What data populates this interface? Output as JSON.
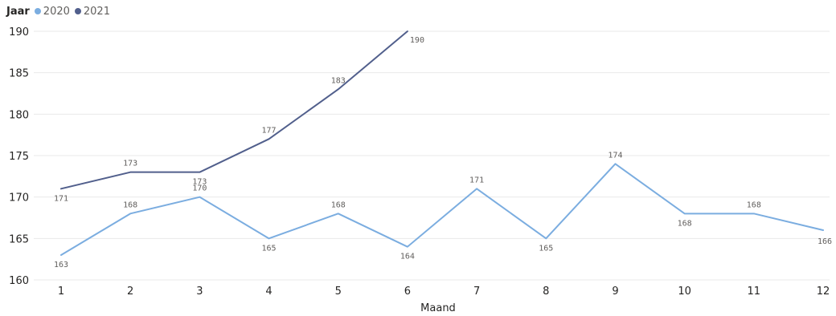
{
  "legend": {
    "title": "Jaar",
    "items": [
      {
        "label": "2020",
        "color": "#7BADE0"
      },
      {
        "label": "2021",
        "color": "#515F8C"
      }
    ]
  },
  "chart_data": {
    "type": "line",
    "xlabel": "Maand",
    "ylabel": "",
    "x": [
      1,
      2,
      3,
      4,
      5,
      6,
      7,
      8,
      9,
      10,
      11,
      12
    ],
    "ylim": [
      160,
      190
    ],
    "yticks": [
      160,
      165,
      170,
      175,
      180,
      185,
      190
    ],
    "grid": true,
    "legend_position": "top-left",
    "series": [
      {
        "name": "2020",
        "color": "#7BADE0",
        "x": [
          1,
          2,
          3,
          4,
          5,
          6,
          7,
          8,
          9,
          10,
          11,
          12
        ],
        "values": [
          163,
          168,
          170,
          165,
          168,
          164,
          171,
          165,
          174,
          168,
          168,
          166
        ]
      },
      {
        "name": "2021",
        "color": "#515F8C",
        "x": [
          1,
          2,
          3,
          4,
          5,
          6
        ],
        "values": [
          171,
          173,
          173,
          177,
          183,
          190
        ]
      }
    ]
  }
}
